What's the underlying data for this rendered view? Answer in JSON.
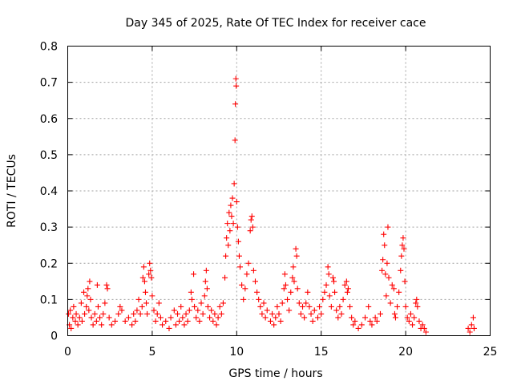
{
  "chart_data": {
    "type": "scatter",
    "title": "Day 345 of 2025, Rate Of TEC Index for receiver cace",
    "xlabel": "GPS time / hours",
    "ylabel": "ROTI / TECUs",
    "xlim": [
      0,
      25
    ],
    "ylim": [
      0,
      0.8
    ],
    "xticks": [
      0,
      5,
      10,
      15,
      20,
      25
    ],
    "xtick_labels": [
      "0",
      "5",
      "10",
      "15",
      "20",
      "25"
    ],
    "yticks": [
      0,
      0.1,
      0.2,
      0.3,
      0.4,
      0.5,
      0.6,
      0.7,
      0.8
    ],
    "ytick_labels": [
      "0",
      "0.1",
      "0.2",
      "0.3",
      "0.4",
      "0.5",
      "0.6",
      "0.7",
      "0.8"
    ],
    "grid": true,
    "marker": "plus",
    "color": "#ff0000",
    "series": [
      {
        "values": [
          [
            0.05,
            0.06
          ],
          [
            0.1,
            0.03
          ],
          [
            0.15,
            0.07
          ],
          [
            0.2,
            0.02
          ],
          [
            0.3,
            0.05
          ],
          [
            0.35,
            0.08
          ],
          [
            0.45,
            0.04
          ],
          [
            0.5,
            0.06
          ],
          [
            0.6,
            0.03
          ],
          [
            0.7,
            0.05
          ],
          [
            0.8,
            0.09
          ],
          [
            0.85,
            0.04
          ],
          [
            0.95,
            0.12
          ],
          [
            1.0,
            0.06
          ],
          [
            1.1,
            0.08
          ],
          [
            1.15,
            0.11
          ],
          [
            1.2,
            0.13
          ],
          [
            1.25,
            0.07
          ],
          [
            1.3,
            0.15
          ],
          [
            1.35,
            0.1
          ],
          [
            1.4,
            0.05
          ],
          [
            1.5,
            0.03
          ],
          [
            1.6,
            0.06
          ],
          [
            1.7,
            0.04
          ],
          [
            1.75,
            0.14
          ],
          [
            1.8,
            0.08
          ],
          [
            1.9,
            0.05
          ],
          [
            2.0,
            0.03
          ],
          [
            2.1,
            0.06
          ],
          [
            2.2,
            0.09
          ],
          [
            2.3,
            0.14
          ],
          [
            2.35,
            0.13
          ],
          [
            2.45,
            0.05
          ],
          [
            2.6,
            0.03
          ],
          [
            2.8,
            0.04
          ],
          [
            3.0,
            0.06
          ],
          [
            3.1,
            0.08
          ],
          [
            3.2,
            0.07
          ],
          [
            3.4,
            0.04
          ],
          [
            3.6,
            0.05
          ],
          [
            3.8,
            0.03
          ],
          [
            3.9,
            0.06
          ],
          [
            4.0,
            0.04
          ],
          [
            4.1,
            0.07
          ],
          [
            4.2,
            0.1
          ],
          [
            4.3,
            0.06
          ],
          [
            4.4,
            0.08
          ],
          [
            4.45,
            0.16
          ],
          [
            4.5,
            0.19
          ],
          [
            4.55,
            0.15
          ],
          [
            4.6,
            0.12
          ],
          [
            4.65,
            0.09
          ],
          [
            4.7,
            0.06
          ],
          [
            4.8,
            0.17
          ],
          [
            4.85,
            0.2
          ],
          [
            4.9,
            0.18
          ],
          [
            4.95,
            0.16
          ],
          [
            5.0,
            0.11
          ],
          [
            5.1,
            0.07
          ],
          [
            5.2,
            0.04
          ],
          [
            5.3,
            0.06
          ],
          [
            5.4,
            0.09
          ],
          [
            5.5,
            0.05
          ],
          [
            5.6,
            0.03
          ],
          [
            5.8,
            0.04
          ],
          [
            6.0,
            0.02
          ],
          [
            6.1,
            0.05
          ],
          [
            6.3,
            0.07
          ],
          [
            6.4,
            0.03
          ],
          [
            6.5,
            0.06
          ],
          [
            6.6,
            0.04
          ],
          [
            6.7,
            0.08
          ],
          [
            6.8,
            0.05
          ],
          [
            6.9,
            0.03
          ],
          [
            7.0,
            0.06
          ],
          [
            7.1,
            0.04
          ],
          [
            7.2,
            0.07
          ],
          [
            7.3,
            0.12
          ],
          [
            7.35,
            0.1
          ],
          [
            7.45,
            0.17
          ],
          [
            7.5,
            0.08
          ],
          [
            7.6,
            0.05
          ],
          [
            7.7,
            0.07
          ],
          [
            7.8,
            0.04
          ],
          [
            7.9,
            0.09
          ],
          [
            8.0,
            0.06
          ],
          [
            8.1,
            0.11
          ],
          [
            8.15,
            0.15
          ],
          [
            8.2,
            0.18
          ],
          [
            8.25,
            0.13
          ],
          [
            8.3,
            0.08
          ],
          [
            8.4,
            0.05
          ],
          [
            8.5,
            0.07
          ],
          [
            8.6,
            0.04
          ],
          [
            8.7,
            0.06
          ],
          [
            8.8,
            0.03
          ],
          [
            8.9,
            0.05
          ],
          [
            9.0,
            0.08
          ],
          [
            9.1,
            0.06
          ],
          [
            9.2,
            0.09
          ],
          [
            9.3,
            0.16
          ],
          [
            9.35,
            0.22
          ],
          [
            9.4,
            0.27
          ],
          [
            9.45,
            0.31
          ],
          [
            9.5,
            0.25
          ],
          [
            9.55,
            0.34
          ],
          [
            9.6,
            0.29
          ],
          [
            9.65,
            0.36
          ],
          [
            9.7,
            0.33
          ],
          [
            9.75,
            0.38
          ],
          [
            9.8,
            0.31
          ],
          [
            9.85,
            0.42
          ],
          [
            9.9,
            0.54
          ],
          [
            9.92,
            0.64
          ],
          [
            9.95,
            0.71
          ],
          [
            9.97,
            0.69
          ],
          [
            10.0,
            0.37
          ],
          [
            10.05,
            0.3
          ],
          [
            10.1,
            0.26
          ],
          [
            10.15,
            0.22
          ],
          [
            10.2,
            0.19
          ],
          [
            10.3,
            0.14
          ],
          [
            10.4,
            0.1
          ],
          [
            10.5,
            0.13
          ],
          [
            10.6,
            0.17
          ],
          [
            10.7,
            0.2
          ],
          [
            10.8,
            0.29
          ],
          [
            10.85,
            0.32
          ],
          [
            10.9,
            0.33
          ],
          [
            10.95,
            0.3
          ],
          [
            11.0,
            0.18
          ],
          [
            11.1,
            0.15
          ],
          [
            11.2,
            0.12
          ],
          [
            11.3,
            0.1
          ],
          [
            11.4,
            0.08
          ],
          [
            11.5,
            0.06
          ],
          [
            11.6,
            0.09
          ],
          [
            11.7,
            0.05
          ],
          [
            11.8,
            0.07
          ],
          [
            12.0,
            0.04
          ],
          [
            12.1,
            0.06
          ],
          [
            12.2,
            0.03
          ],
          [
            12.3,
            0.05
          ],
          [
            12.4,
            0.08
          ],
          [
            12.5,
            0.06
          ],
          [
            12.6,
            0.04
          ],
          [
            12.7,
            0.09
          ],
          [
            12.8,
            0.13
          ],
          [
            12.85,
            0.17
          ],
          [
            12.9,
            0.14
          ],
          [
            13.0,
            0.1
          ],
          [
            13.1,
            0.07
          ],
          [
            13.2,
            0.12
          ],
          [
            13.3,
            0.16
          ],
          [
            13.35,
            0.19
          ],
          [
            13.4,
            0.15
          ],
          [
            13.5,
            0.24
          ],
          [
            13.55,
            0.22
          ],
          [
            13.6,
            0.13
          ],
          [
            13.7,
            0.09
          ],
          [
            13.8,
            0.06
          ],
          [
            13.9,
            0.08
          ],
          [
            14.0,
            0.05
          ],
          [
            14.1,
            0.09
          ],
          [
            14.2,
            0.12
          ],
          [
            14.3,
            0.08
          ],
          [
            14.4,
            0.06
          ],
          [
            14.5,
            0.04
          ],
          [
            14.6,
            0.07
          ],
          [
            14.8,
            0.05
          ],
          [
            14.9,
            0.08
          ],
          [
            15.0,
            0.06
          ],
          [
            15.1,
            0.1
          ],
          [
            15.2,
            0.12
          ],
          [
            15.3,
            0.14
          ],
          [
            15.4,
            0.19
          ],
          [
            15.45,
            0.17
          ],
          [
            15.5,
            0.11
          ],
          [
            15.6,
            0.08
          ],
          [
            15.7,
            0.16
          ],
          [
            15.75,
            0.15
          ],
          [
            15.8,
            0.12
          ],
          [
            15.9,
            0.07
          ],
          [
            16.0,
            0.05
          ],
          [
            16.1,
            0.08
          ],
          [
            16.2,
            0.06
          ],
          [
            16.3,
            0.1
          ],
          [
            16.4,
            0.14
          ],
          [
            16.5,
            0.15
          ],
          [
            16.55,
            0.12
          ],
          [
            16.6,
            0.13
          ],
          [
            16.7,
            0.08
          ],
          [
            16.8,
            0.05
          ],
          [
            16.9,
            0.03
          ],
          [
            17.0,
            0.04
          ],
          [
            17.2,
            0.02
          ],
          [
            17.4,
            0.03
          ],
          [
            17.6,
            0.05
          ],
          [
            17.8,
            0.08
          ],
          [
            17.9,
            0.04
          ],
          [
            18.0,
            0.03
          ],
          [
            18.2,
            0.05
          ],
          [
            18.3,
            0.04
          ],
          [
            18.5,
            0.06
          ],
          [
            18.6,
            0.18
          ],
          [
            18.65,
            0.21
          ],
          [
            18.7,
            0.28
          ],
          [
            18.75,
            0.25
          ],
          [
            18.8,
            0.17
          ],
          [
            18.85,
            0.11
          ],
          [
            18.9,
            0.2
          ],
          [
            18.95,
            0.3
          ],
          [
            19.0,
            0.16
          ],
          [
            19.1,
            0.09
          ],
          [
            19.2,
            0.14
          ],
          [
            19.3,
            0.13
          ],
          [
            19.35,
            0.06
          ],
          [
            19.4,
            0.05
          ],
          [
            19.5,
            0.08
          ],
          [
            19.6,
            0.12
          ],
          [
            19.7,
            0.18
          ],
          [
            19.75,
            0.22
          ],
          [
            19.8,
            0.25
          ],
          [
            19.85,
            0.27
          ],
          [
            19.9,
            0.24
          ],
          [
            19.95,
            0.15
          ],
          [
            20.0,
            0.08
          ],
          [
            20.1,
            0.05
          ],
          [
            20.2,
            0.04
          ],
          [
            20.3,
            0.06
          ],
          [
            20.4,
            0.03
          ],
          [
            20.5,
            0.05
          ],
          [
            20.6,
            0.09
          ],
          [
            20.65,
            0.1
          ],
          [
            20.7,
            0.08
          ],
          [
            20.8,
            0.04
          ],
          [
            20.9,
            0.02
          ],
          [
            21.0,
            0.03
          ],
          [
            21.1,
            0.02
          ],
          [
            21.2,
            0.01
          ],
          [
            23.7,
            0.02
          ],
          [
            23.8,
            0.01
          ],
          [
            23.9,
            0.03
          ],
          [
            24.0,
            0.05
          ],
          [
            24.05,
            0.02
          ]
        ]
      }
    ]
  }
}
